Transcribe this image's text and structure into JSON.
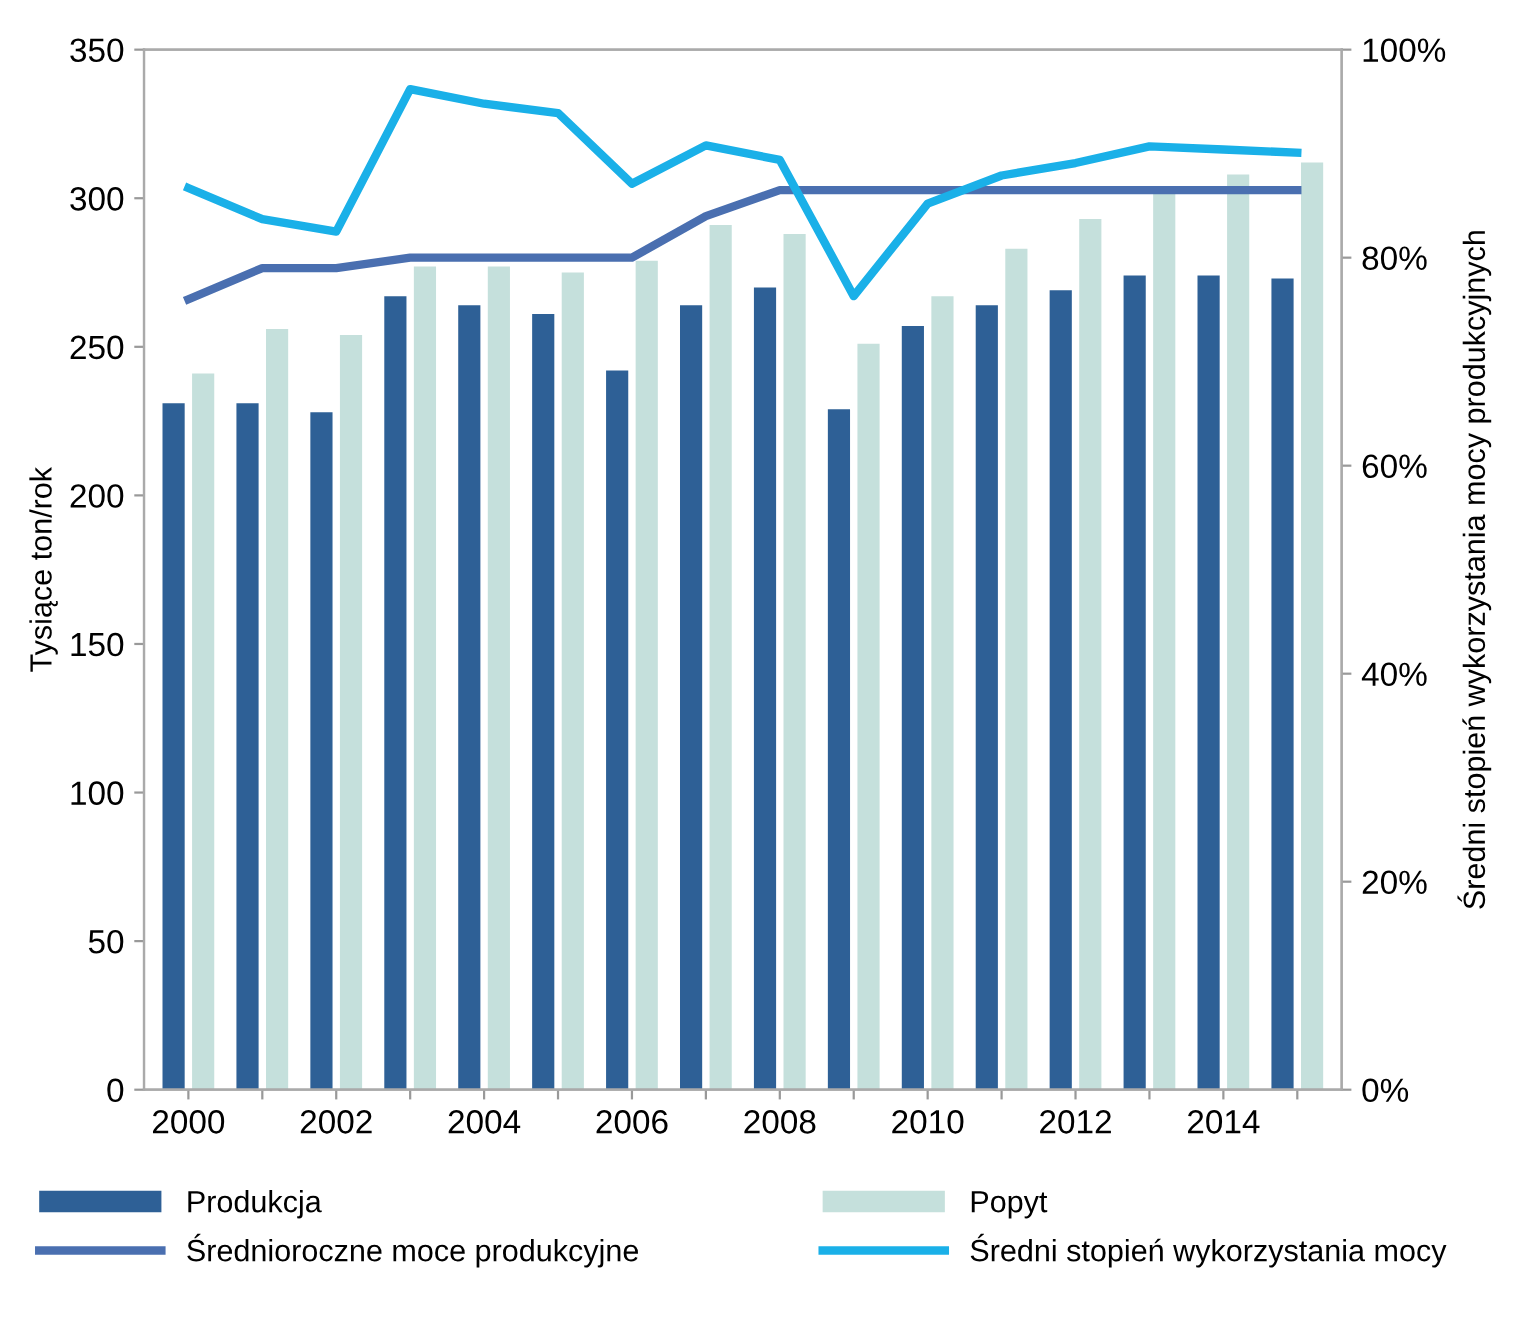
{
  "chart_data": {
    "type": "bar",
    "ylabel": "Tysiące ton/rok",
    "y2label": "Średni stopień wykorzystania mocy produkcyjnych",
    "categories": [
      "2000",
      null,
      "2002",
      null,
      "2004",
      null,
      "2006",
      null,
      "2008",
      null,
      "2010",
      null,
      "2012",
      null,
      "2014",
      null
    ],
    "series": [
      {
        "name": "Produkcja",
        "color": "#2e6096",
        "values": [
          231,
          231,
          228,
          267,
          264,
          261,
          242,
          264,
          270,
          229,
          257,
          264,
          269,
          274,
          274,
          273
        ]
      },
      {
        "name": "Popyt",
        "color": "#c5e0dc",
        "values": [
          241,
          256,
          254,
          277,
          277,
          275,
          279,
          291,
          288,
          251,
          267,
          283,
          293,
          302,
          308,
          312
        ]
      },
      {
        "name": "Średnioroczne moce produkcyjne",
        "type": "line",
        "axis": "y2",
        "color": "#4a6fb0",
        "values": [
          76,
          79,
          79,
          80,
          80,
          80,
          80,
          84,
          86.5,
          86.5,
          86.5,
          86.5,
          86.5,
          86.5,
          86.5,
          86.5
        ]
      },
      {
        "name": "Średni stopień wykorzystania mocy",
        "type": "line",
        "axis": "y2",
        "color": "#1ab0e8",
        "values": [
          86.7,
          83.7,
          82.5,
          96.2,
          94.8,
          93.9,
          87.1,
          90.8,
          89.4,
          76.3,
          85.2,
          87.9,
          89.1,
          90.7,
          90.4,
          90.1
        ]
      }
    ],
    "ylim": [
      0,
      350
    ],
    "yticks": [
      0,
      50,
      100,
      150,
      200,
      250,
      300,
      350
    ],
    "y2lim": [
      0,
      100
    ],
    "y2ticks": [
      {
        "value": 0,
        "label": "0%"
      },
      {
        "value": 20,
        "label": "20%"
      },
      {
        "value": 40,
        "label": "40%"
      },
      {
        "value": 60,
        "label": "60%"
      },
      {
        "value": 80,
        "label": "80%"
      },
      {
        "value": 100,
        "label": "100%"
      }
    ],
    "grid": false,
    "legend": "bottom",
    "marker": "none",
    "line_style": "solid"
  }
}
